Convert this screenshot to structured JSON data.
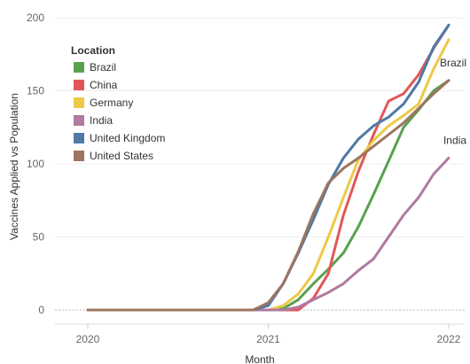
{
  "chart_data": {
    "type": "line",
    "xlabel": "Month",
    "ylabel": "Vaccines Applied vs Population",
    "xlim": [
      "2019-12",
      "2022-01"
    ],
    "ylim": [
      0,
      200
    ],
    "y_ticks": [
      "0",
      "50",
      "100",
      "150",
      "200"
    ],
    "x_ticks": [
      {
        "label": "2020",
        "x": "2020-01"
      },
      {
        "label": "2021",
        "x": "2021-01"
      },
      {
        "label": "2022",
        "x": "2022-01"
      }
    ],
    "grid": {
      "horizontal": true,
      "vertical": false
    },
    "legend": {
      "title": "Location",
      "placement": "top-left"
    },
    "months": [
      "2020-01",
      "2020-02",
      "2020-03",
      "2020-04",
      "2020-05",
      "2020-06",
      "2020-07",
      "2020-08",
      "2020-09",
      "2020-10",
      "2020-11",
      "2020-12",
      "2021-01",
      "2021-02",
      "2021-03",
      "2021-04",
      "2021-05",
      "2021-06",
      "2021-07",
      "2021-08",
      "2021-09",
      "2021-10",
      "2021-11",
      "2021-12",
      "2022-01"
    ],
    "series": [
      {
        "name": "Brazil",
        "color": "#59a14f",
        "end_label": "Brazil",
        "values": [
          0,
          0,
          0,
          0,
          0,
          0,
          0,
          0,
          0,
          0,
          0,
          0,
          0,
          1,
          7,
          18,
          28,
          39,
          57,
          79,
          102,
          125,
          137,
          150,
          157
        ]
      },
      {
        "name": "China",
        "color": "#e15759",
        "end_label": "",
        "values": [
          0,
          0,
          0,
          0,
          0,
          0,
          0,
          0,
          0,
          0,
          0,
          0,
          0,
          0,
          0,
          8,
          25,
          65,
          95,
          120,
          143,
          148,
          161,
          179,
          195
        ]
      },
      {
        "name": "Germany",
        "color": "#edc948",
        "end_label": "",
        "values": [
          0,
          0,
          0,
          0,
          0,
          0,
          0,
          0,
          0,
          0,
          0,
          0,
          0,
          3,
          11,
          25,
          50,
          77,
          103,
          116,
          126,
          133,
          141,
          165,
          185
        ]
      },
      {
        "name": "India",
        "color": "#b07aa1",
        "end_label": "India",
        "values": [
          0,
          0,
          0,
          0,
          0,
          0,
          0,
          0,
          0,
          0,
          0,
          0,
          0,
          0,
          2,
          7,
          12,
          18,
          27,
          35,
          50,
          65,
          77,
          93,
          104
        ]
      },
      {
        "name": "United Kingdom",
        "color": "#4e79a7",
        "end_label": "",
        "values": [
          0,
          0,
          0,
          0,
          0,
          0,
          0,
          0,
          0,
          0,
          0,
          0,
          3,
          18,
          39,
          62,
          86,
          104,
          117,
          126,
          132,
          141,
          156,
          180,
          195
        ]
      },
      {
        "name": "United States",
        "color": "#9c755f",
        "end_label": "",
        "values": [
          0,
          0,
          0,
          0,
          0,
          0,
          0,
          0,
          0,
          0,
          0,
          0,
          5,
          18,
          40,
          66,
          87,
          97,
          104,
          112,
          120,
          128,
          138,
          148,
          157
        ]
      }
    ]
  }
}
